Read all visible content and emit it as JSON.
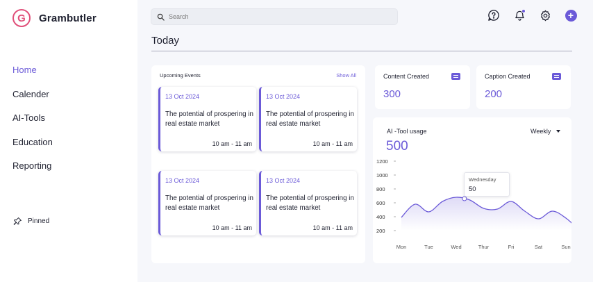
{
  "app": {
    "name": "Grambutler",
    "logo_letter": "G"
  },
  "sidebar": {
    "items": [
      {
        "label": "Home",
        "active": true
      },
      {
        "label": "Calender",
        "active": false
      },
      {
        "label": "AI-Tools",
        "active": false
      },
      {
        "label": "Education",
        "active": false
      },
      {
        "label": "Reporting",
        "active": false
      }
    ],
    "pinned_label": "Pinned"
  },
  "search": {
    "placeholder": "Search",
    "value": ""
  },
  "header": {
    "icons": [
      "help-icon",
      "bell-icon",
      "gear-icon",
      "plus-icon"
    ],
    "plus_symbol": "+"
  },
  "page": {
    "title": "Today"
  },
  "events": {
    "title": "Upcoming Events",
    "show_all": "Show All",
    "items": [
      {
        "date": "13 Oct 2024",
        "title": "The potential of prospering in real estate market",
        "time": "10 am - 11 am"
      },
      {
        "date": "13 Oct 2024",
        "title": "The potential of prospering in real estate market",
        "time": "10 am - 11 am"
      },
      {
        "date": "13 Oct 2024",
        "title": "The potential of prospering in real estate market",
        "time": "10 am - 11 am"
      },
      {
        "date": "13 Oct 2024",
        "title": "The potential of prospering in real estate market",
        "time": "10 am - 11 am"
      }
    ]
  },
  "stats": {
    "content": {
      "label": "Content Created",
      "value": "300"
    },
    "caption": {
      "label": "Caption Created",
      "value": "200"
    }
  },
  "colors": {
    "accent": "#6b5ad8",
    "logo": "#e0507a",
    "text": "#1f2130",
    "background": "#f6f7fb"
  },
  "chart_data": {
    "type": "area",
    "title": "AI -Tool usage",
    "total": "500",
    "period": "Weekly",
    "categories": [
      "Mon",
      "Tue",
      "Wed",
      "Thur",
      "Fri",
      "Sat",
      "Sun"
    ],
    "yticks": [
      "1200",
      "1000",
      "800",
      "600",
      "400",
      "200"
    ],
    "ylim": [
      200,
      1200
    ],
    "series": [
      {
        "x": [
          0,
          0.5,
          1,
          1.5,
          2,
          2.5,
          3,
          3.5,
          4,
          4.5,
          5,
          5.5,
          6,
          6.5
        ],
        "y": [
          390,
          580,
          470,
          620,
          680,
          640,
          520,
          510,
          620,
          480,
          370,
          480,
          380,
          200
        ]
      }
    ],
    "grid": false,
    "tooltip": {
      "label": "Wednesday",
      "value": "50"
    }
  }
}
